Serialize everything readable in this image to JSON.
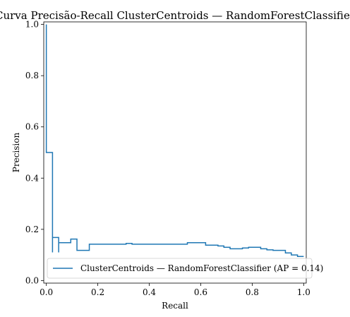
{
  "chart_data": {
    "type": "line",
    "title": "Curva Precisão-Recall ClusterCentroids — RandomForestClassifier",
    "xlabel": "Recall",
    "ylabel": "Precision",
    "xlim": [
      -0.01,
      1.01
    ],
    "ylim": [
      -0.01,
      1.01
    ],
    "xticks": [
      0.0,
      0.2,
      0.4,
      0.6,
      0.8,
      1.0
    ],
    "xtick_labels": [
      "0.0",
      "0.2",
      "0.4",
      "0.6",
      "0.8",
      "1.0"
    ],
    "yticks": [
      0.0,
      0.2,
      0.4,
      0.6,
      0.8,
      1.0
    ],
    "ytick_labels": [
      "0.0",
      "0.2",
      "0.4",
      "0.6",
      "0.8",
      "1.0"
    ],
    "grid": false,
    "legend_position": "lower-right",
    "series": [
      {
        "name": "ClusterCentroids — RandomForestClassifier (AP = 0.14)",
        "color": "#1f77b4",
        "drawstyle": "steps-post",
        "points": [
          [
            0.0,
            1.0
          ],
          [
            0.0,
            0.5
          ],
          [
            0.024,
            0.5
          ],
          [
            0.024,
            0.11
          ],
          [
            0.024,
            0.168
          ],
          [
            0.048,
            0.168
          ],
          [
            0.048,
            0.11
          ],
          [
            0.048,
            0.148
          ],
          [
            0.095,
            0.148
          ],
          [
            0.095,
            0.162
          ],
          [
            0.119,
            0.162
          ],
          [
            0.119,
            0.118
          ],
          [
            0.167,
            0.118
          ],
          [
            0.167,
            0.142
          ],
          [
            0.31,
            0.142
          ],
          [
            0.31,
            0.145
          ],
          [
            0.333,
            0.145
          ],
          [
            0.333,
            0.142
          ],
          [
            0.548,
            0.142
          ],
          [
            0.548,
            0.148
          ],
          [
            0.619,
            0.148
          ],
          [
            0.619,
            0.138
          ],
          [
            0.667,
            0.138
          ],
          [
            0.667,
            0.135
          ],
          [
            0.69,
            0.135
          ],
          [
            0.69,
            0.13
          ],
          [
            0.714,
            0.13
          ],
          [
            0.714,
            0.124
          ],
          [
            0.762,
            0.124
          ],
          [
            0.762,
            0.127
          ],
          [
            0.786,
            0.127
          ],
          [
            0.786,
            0.13
          ],
          [
            0.833,
            0.13
          ],
          [
            0.833,
            0.124
          ],
          [
            0.857,
            0.124
          ],
          [
            0.857,
            0.12
          ],
          [
            0.881,
            0.12
          ],
          [
            0.881,
            0.118
          ],
          [
            0.929,
            0.118
          ],
          [
            0.929,
            0.108
          ],
          [
            0.952,
            0.108
          ],
          [
            0.952,
            0.1
          ],
          [
            0.976,
            0.1
          ],
          [
            0.976,
            0.094
          ],
          [
            1.0,
            0.094
          ]
        ]
      }
    ]
  }
}
